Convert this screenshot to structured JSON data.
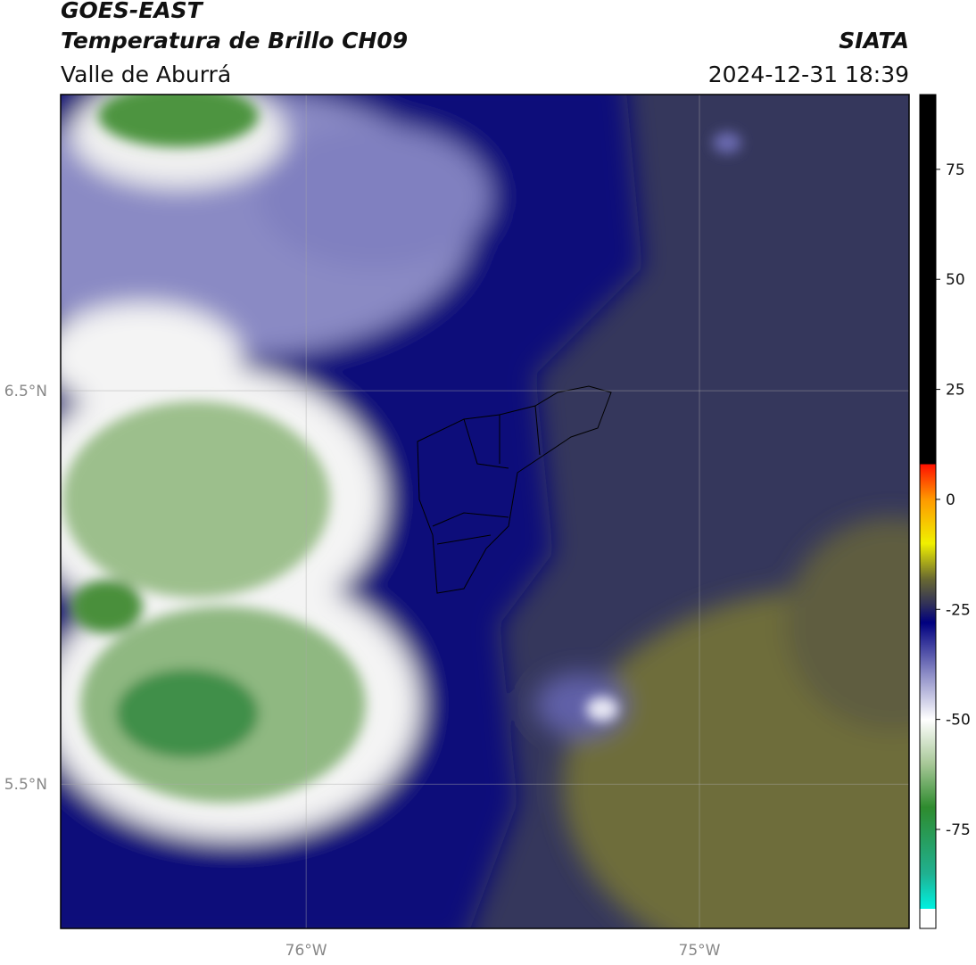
{
  "chart_data": {
    "type": "map",
    "title": "GOES-EAST",
    "subtitle": "Temperatura de Brillo CH09",
    "region": "Valle de Aburrá",
    "source": "SIATA",
    "datetime": "2024-12-31 18:39",
    "xlim": [
      -76.624,
      -74.467
    ],
    "ylim": [
      5.133,
      7.253
    ],
    "xticks": [
      {
        "value": -76,
        "label": "76°W"
      },
      {
        "value": -75,
        "label": "75°W"
      }
    ],
    "yticks": [
      {
        "value": 6.5,
        "label": "6.5°N"
      },
      {
        "value": 5.5,
        "label": "5.5°N"
      }
    ],
    "grid": true,
    "colorbar": {
      "clim": [
        -97.5,
        92
      ],
      "ticks": [
        75,
        50,
        25,
        0,
        -25,
        -50,
        -75
      ],
      "colormap": [
        {
          "value": -97.5,
          "color": "#ffffff"
        },
        {
          "value": -93,
          "color": "#ffffff"
        },
        {
          "value": -93,
          "color": "#00f0e0"
        },
        {
          "value": -85,
          "color": "#20b090"
        },
        {
          "value": -70,
          "color": "#2e8b2e"
        },
        {
          "value": -60,
          "color": "#a8c898"
        },
        {
          "value": -50,
          "color": "#ffffff"
        },
        {
          "value": -40,
          "color": "#9090c8"
        },
        {
          "value": -28,
          "color": "#00007f"
        },
        {
          "value": -24,
          "color": "#2e2e5a"
        },
        {
          "value": -18,
          "color": "#6a6a30"
        },
        {
          "value": -10,
          "color": "#f0f000"
        },
        {
          "value": 0,
          "color": "#ff9900"
        },
        {
          "value": 8,
          "color": "#ff1000"
        },
        {
          "value": 8,
          "color": "#000000"
        },
        {
          "value": 92,
          "color": "#000000"
        }
      ]
    }
  }
}
